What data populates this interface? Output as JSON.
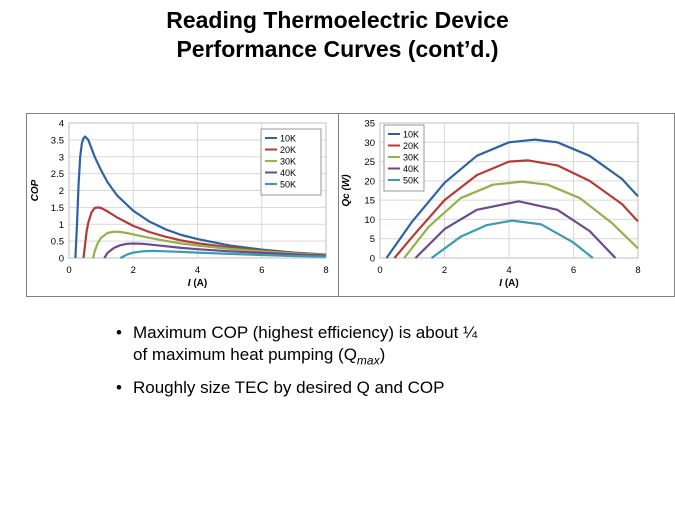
{
  "title": {
    "line1": "Reading Thermoelectric Device",
    "line2": "Performance Curves (cont’d.)"
  },
  "bullets": [
    {
      "text_pre": "Maximum  COP (highest efficiency) is about ¼",
      "text_line2_pre": "of maximum  heat pumping  (Q",
      "sub": "max",
      "text_post": ")"
    },
    {
      "text": "Roughly  size TEC by desired Q and COP"
    }
  ],
  "bullet_symbol": "•",
  "chart_data": [
    {
      "type": "line",
      "xlabel": "I (A)",
      "ylabel": "COP",
      "xlim": [
        0,
        8
      ],
      "ylim": [
        0,
        4
      ],
      "xticks": [
        0,
        2,
        4,
        6,
        8
      ],
      "yticks": [
        0,
        0.5,
        1,
        1.5,
        2,
        2.5,
        3,
        3.5,
        4
      ],
      "ytick_labels": [
        "0",
        "0.5",
        "1",
        "1.5",
        "2",
        "2.5",
        "3",
        "3.5",
        "4"
      ],
      "grid": true,
      "legend_position": "top-right",
      "series": [
        {
          "name": "10K",
          "color": "#2E63A3",
          "x": [
            0.2,
            0.25,
            0.3,
            0.35,
            0.4,
            0.45,
            0.5,
            0.6,
            0.7,
            0.8,
            1.0,
            1.2,
            1.5,
            2.0,
            2.5,
            3.0,
            3.5,
            4.0,
            5.0,
            6.0,
            7.0,
            8.0
          ],
          "y": [
            0,
            1.0,
            2.2,
            3.0,
            3.4,
            3.55,
            3.6,
            3.5,
            3.25,
            3.0,
            2.6,
            2.25,
            1.85,
            1.4,
            1.08,
            0.85,
            0.68,
            0.56,
            0.37,
            0.25,
            0.16,
            0.1
          ]
        },
        {
          "name": "20K",
          "color": "#B83A35",
          "x": [
            0.45,
            0.5,
            0.55,
            0.6,
            0.7,
            0.8,
            0.9,
            1.0,
            1.2,
            1.5,
            2.0,
            2.5,
            3.0,
            3.5,
            4.0,
            5.0,
            6.0,
            7.0,
            8.0
          ],
          "y": [
            0,
            0.4,
            0.8,
            1.05,
            1.35,
            1.48,
            1.5,
            1.48,
            1.38,
            1.2,
            0.95,
            0.77,
            0.63,
            0.52,
            0.44,
            0.31,
            0.22,
            0.15,
            0.1
          ]
        },
        {
          "name": "30K",
          "color": "#93B24A",
          "x": [
            0.75,
            0.8,
            0.9,
            1.0,
            1.2,
            1.4,
            1.6,
            1.8,
            2.0,
            2.5,
            3.0,
            3.5,
            4.0,
            5.0,
            6.0,
            7.0,
            8.0
          ],
          "y": [
            0,
            0.2,
            0.45,
            0.6,
            0.74,
            0.78,
            0.77,
            0.74,
            0.7,
            0.6,
            0.51,
            0.43,
            0.37,
            0.27,
            0.2,
            0.14,
            0.09
          ]
        },
        {
          "name": "40K",
          "color": "#6B4A8F",
          "x": [
            1.1,
            1.2,
            1.4,
            1.6,
            1.8,
            2.0,
            2.3,
            2.6,
            3.0,
            3.5,
            4.0,
            5.0,
            6.0,
            7.0,
            8.0
          ],
          "y": [
            0,
            0.15,
            0.3,
            0.38,
            0.42,
            0.43,
            0.42,
            0.39,
            0.35,
            0.3,
            0.26,
            0.2,
            0.15,
            0.11,
            0.07
          ]
        },
        {
          "name": "50K",
          "color": "#3A9BB5",
          "x": [
            1.6,
            1.8,
            2.0,
            2.3,
            2.6,
            3.0,
            3.5,
            4.0,
            5.0,
            6.0,
            7.0,
            8.0
          ],
          "y": [
            0,
            0.1,
            0.16,
            0.2,
            0.21,
            0.2,
            0.18,
            0.16,
            0.12,
            0.09,
            0.06,
            0.04
          ]
        }
      ]
    },
    {
      "type": "line",
      "xlabel": "I (A)",
      "ylabel": "Qc (W)",
      "xlim": [
        0,
        8
      ],
      "ylim": [
        0,
        35
      ],
      "xticks": [
        0,
        2,
        4,
        6,
        8
      ],
      "yticks": [
        0,
        5,
        10,
        15,
        20,
        25,
        30,
        35
      ],
      "ytick_labels": [
        "0",
        "5",
        "10",
        "15",
        "20",
        "25",
        "30",
        "35"
      ],
      "grid": true,
      "legend_position": "top-left",
      "series": [
        {
          "name": "10K",
          "color": "#2E63A3",
          "x": [
            0.2,
            1.0,
            2.0,
            3.0,
            4.0,
            4.8,
            5.5,
            6.5,
            7.5,
            8.0
          ],
          "y": [
            0,
            9.5,
            19.5,
            26.5,
            30.0,
            30.7,
            30.0,
            26.5,
            20.5,
            16.0
          ]
        },
        {
          "name": "20K",
          "color": "#B83A35",
          "x": [
            0.45,
            1.0,
            2.0,
            3.0,
            4.0,
            4.6,
            5.5,
            6.5,
            7.5,
            8.0
          ],
          "y": [
            0,
            5.5,
            15.0,
            21.5,
            25.0,
            25.3,
            24.0,
            20.0,
            14.0,
            9.5
          ]
        },
        {
          "name": "30K",
          "color": "#93B24A",
          "x": [
            0.75,
            1.5,
            2.5,
            3.5,
            4.4,
            5.2,
            6.2,
            7.2,
            8.0
          ],
          "y": [
            0,
            8.0,
            15.5,
            19.0,
            19.8,
            19.0,
            15.5,
            9.0,
            2.5
          ]
        },
        {
          "name": "40K",
          "color": "#6B4A8F",
          "x": [
            1.1,
            2.0,
            3.0,
            4.3,
            5.5,
            6.5,
            7.3
          ],
          "y": [
            0,
            7.5,
            12.5,
            14.7,
            12.5,
            7.0,
            0
          ]
        },
        {
          "name": "50K",
          "color": "#3A9BB5",
          "x": [
            1.6,
            2.5,
            3.3,
            4.1,
            5.0,
            6.0,
            6.6
          ],
          "y": [
            0,
            5.5,
            8.5,
            9.7,
            8.7,
            4.0,
            0
          ]
        }
      ]
    }
  ]
}
